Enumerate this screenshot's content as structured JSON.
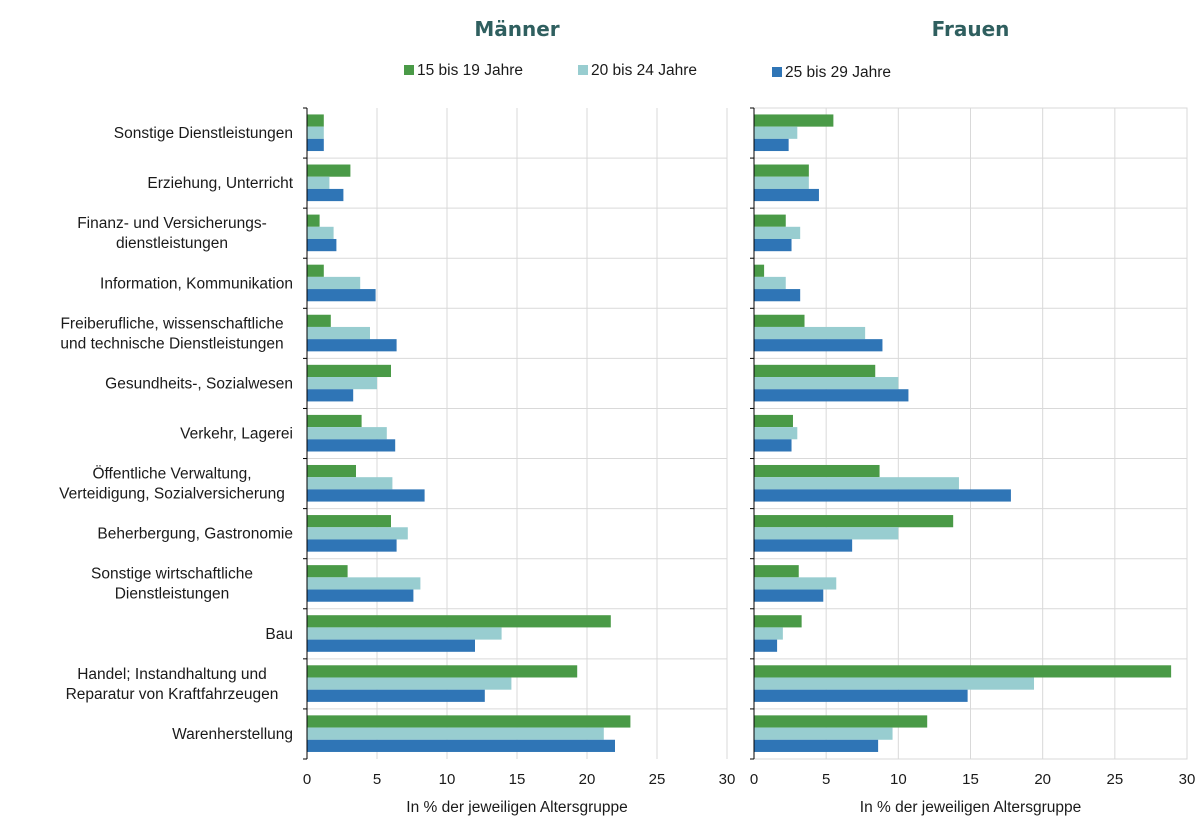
{
  "chart_data": [
    {
      "type": "bar",
      "orientation": "horizontal",
      "title": "Männer",
      "xlabel": "In % der jeweiligen Altersgruppe",
      "xlim": [
        0,
        30
      ],
      "xticks": [
        0,
        5,
        10,
        15,
        20,
        25,
        30
      ],
      "grid": true,
      "categories": [
        "Sonstige Dienstleistungen",
        "Erziehung, Unterricht",
        "Finanz- und Versicherungs-\ndienstleistungen",
        "Information, Kommunikation",
        "Freiberufliche, wissenschaftliche\nund technische Dienstleistungen",
        "Gesundheits-, Sozialwesen",
        "Verkehr, Lagerei",
        "Öffentliche Verwaltung,\nVerteidigung, Sozialversicherung",
        "Beherbergung, Gastronomie",
        "Sonstige wirtschaftliche\nDienstleistungen",
        "Bau",
        "Handel; Instandhaltung und\nReparatur von Kraftfahrzeugen",
        "Warenherstellung"
      ],
      "series": [
        {
          "name": "15 bis 19 Jahre",
          "color": "#4a9a47",
          "values": [
            1.2,
            3.1,
            0.9,
            1.2,
            1.7,
            6.0,
            3.9,
            3.5,
            6.0,
            2.9,
            21.7,
            19.3,
            23.1
          ]
        },
        {
          "name": "20 bis 24 Jahre",
          "color": "#98cdd0",
          "values": [
            1.2,
            1.6,
            1.9,
            3.8,
            4.5,
            5.0,
            5.7,
            6.1,
            7.2,
            8.1,
            13.9,
            14.6,
            21.2
          ]
        },
        {
          "name": "25 bis 29 Jahre",
          "color": "#2f75b6",
          "values": [
            1.2,
            2.6,
            2.1,
            4.9,
            6.4,
            3.3,
            6.3,
            8.4,
            6.4,
            7.6,
            12.0,
            12.7,
            22.0
          ]
        }
      ]
    },
    {
      "type": "bar",
      "orientation": "horizontal",
      "title": "Frauen",
      "xlabel": "In % der jeweiligen Altersgruppe",
      "xlim": [
        0,
        30
      ],
      "xticks": [
        0,
        5,
        10,
        15,
        20,
        25,
        30
      ],
      "grid": true,
      "categories": [
        "Sonstige Dienstleistungen",
        "Erziehung, Unterricht",
        "Finanz- und Versicherungs-\ndienstleistungen",
        "Information, Kommunikation",
        "Freiberufliche, wissenschaftliche\nund technische Dienstleistungen",
        "Gesundheits-, Sozialwesen",
        "Verkehr, Lagerei",
        "Öffentliche Verwaltung,\nVerteidigung, Sozialversicherung",
        "Beherbergung, Gastronomie",
        "Sonstige wirtschaftliche\nDienstleistungen",
        "Bau",
        "Handel; Instandhaltung und\nReparatur von Kraftfahrzeugen",
        "Warenherstellung"
      ],
      "series": [
        {
          "name": "15 bis 19 Jahre",
          "color": "#4a9a47",
          "values": [
            5.5,
            3.8,
            2.2,
            0.7,
            3.5,
            8.4,
            2.7,
            8.7,
            13.8,
            3.1,
            3.3,
            28.9,
            12.0
          ]
        },
        {
          "name": "20 bis 24 Jahre",
          "color": "#98cdd0",
          "values": [
            3.0,
            3.8,
            3.2,
            2.2,
            7.7,
            10.0,
            3.0,
            14.2,
            10.0,
            5.7,
            2.0,
            19.4,
            9.6
          ]
        },
        {
          "name": "25 bis 29 Jahre",
          "color": "#2f75b6",
          "values": [
            2.4,
            4.5,
            2.6,
            3.2,
            8.9,
            10.7,
            2.6,
            17.8,
            6.8,
            4.8,
            1.6,
            14.8,
            8.6
          ]
        }
      ]
    }
  ],
  "legend": {
    "placement": "top",
    "items": [
      {
        "label": "15 bis 19 Jahre",
        "color": "#4a9a47"
      },
      {
        "label": "20 bis 24 Jahre",
        "color": "#98cdd0"
      },
      {
        "label": "25 bis 29 Jahre",
        "color": "#2f75b6"
      }
    ]
  }
}
